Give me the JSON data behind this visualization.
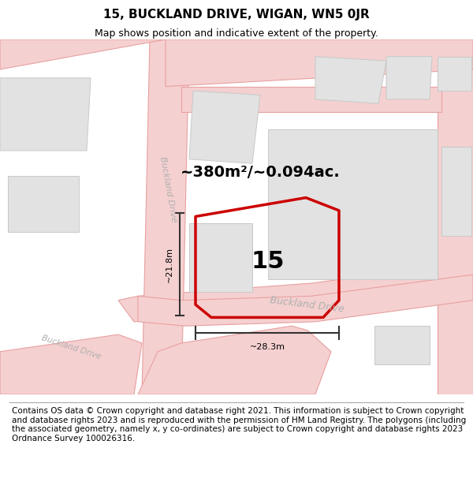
{
  "title": "15, BUCKLAND DRIVE, WIGAN, WN5 0JR",
  "subtitle": "Map shows position and indicative extent of the property.",
  "area_label": "~380m²/~0.094ac.",
  "property_number": "15",
  "dim_width": "~28.3m",
  "dim_height": "~21.8m",
  "footer": "Contains OS data © Crown copyright and database right 2021. This information is subject to Crown copyright and database rights 2023 and is reproduced with the permission of HM Land Registry. The polygons (including the associated geometry, namely x, y co-ordinates) are subject to Crown copyright and database rights 2023 Ordnance Survey 100026316.",
  "bg_map_color": "#ffffff",
  "road_line_color": "#e8a0a0",
  "road_fill_color": "#f5d0d0",
  "building_fill": "#e2e2e2",
  "building_edge": "#c8c8c8",
  "property_color": "#cc0000",
  "street_label_color": "#b0b0b0",
  "dim_color": "#333333",
  "title_fontsize": 11,
  "subtitle_fontsize": 9,
  "area_label_fontsize": 14,
  "property_number_fontsize": 22,
  "dim_fontsize": 8,
  "footer_fontsize": 7.5,
  "street_fontsize": 9
}
